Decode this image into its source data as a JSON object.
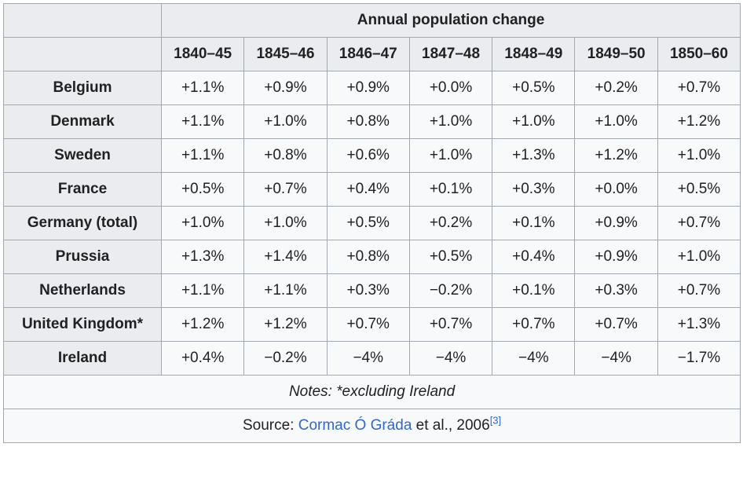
{
  "table": {
    "title": "Annual population change",
    "columns": [
      "1840–45",
      "1845–46",
      "1846–47",
      "1847–48",
      "1848–49",
      "1849–50",
      "1850–60"
    ],
    "rows": [
      {
        "country": "Belgium",
        "values": [
          "+1.1%",
          "+0.9%",
          "+0.9%",
          "+0.0%",
          "+0.5%",
          "+0.2%",
          "+0.7%"
        ]
      },
      {
        "country": "Denmark",
        "values": [
          "+1.1%",
          "+1.0%",
          "+0.8%",
          "+1.0%",
          "+1.0%",
          "+1.0%",
          "+1.2%"
        ]
      },
      {
        "country": "Sweden",
        "values": [
          "+1.1%",
          "+0.8%",
          "+0.6%",
          "+1.0%",
          "+1.3%",
          "+1.2%",
          "+1.0%"
        ]
      },
      {
        "country": "France",
        "values": [
          "+0.5%",
          "+0.7%",
          "+0.4%",
          "+0.1%",
          "+0.3%",
          "+0.0%",
          "+0.5%"
        ]
      },
      {
        "country": "Germany (total)",
        "values": [
          "+1.0%",
          "+1.0%",
          "+0.5%",
          "+0.2%",
          "+0.1%",
          "+0.9%",
          "+0.7%"
        ]
      },
      {
        "country": "Prussia",
        "values": [
          "+1.3%",
          "+1.4%",
          "+0.8%",
          "+0.5%",
          "+0.4%",
          "+0.9%",
          "+1.0%"
        ]
      },
      {
        "country": "Netherlands",
        "values": [
          "+1.1%",
          "+1.1%",
          "+0.3%",
          "−0.2%",
          "+0.1%",
          "+0.3%",
          "+0.7%"
        ]
      },
      {
        "country": "United Kingdom*",
        "values": [
          "+1.2%",
          "+1.2%",
          "+0.7%",
          "+0.7%",
          "+0.7%",
          "+0.7%",
          "+1.3%"
        ]
      },
      {
        "country": "Ireland",
        "values": [
          "+0.4%",
          "−0.2%",
          "−4%",
          "−4%",
          "−4%",
          "−4%",
          "−1.7%"
        ]
      }
    ],
    "notes": "Notes: *excluding Ireland",
    "source": {
      "prefix": "Source: ",
      "link_text": "Cormac Ó Gráda",
      "suffix": " et al., 2006",
      "reference": "[3]"
    }
  },
  "chart_data": {
    "type": "table",
    "title": "Annual population change",
    "categories": [
      "1840–45",
      "1845–46",
      "1846–47",
      "1847–48",
      "1848–49",
      "1849–50",
      "1850–60"
    ],
    "series": [
      {
        "name": "Belgium",
        "values": [
          1.1,
          0.9,
          0.9,
          0.0,
          0.5,
          0.2,
          0.7
        ]
      },
      {
        "name": "Denmark",
        "values": [
          1.1,
          1.0,
          0.8,
          1.0,
          1.0,
          1.0,
          1.2
        ]
      },
      {
        "name": "Sweden",
        "values": [
          1.1,
          0.8,
          0.6,
          1.0,
          1.3,
          1.2,
          1.0
        ]
      },
      {
        "name": "France",
        "values": [
          0.5,
          0.7,
          0.4,
          0.1,
          0.3,
          0.0,
          0.5
        ]
      },
      {
        "name": "Germany (total)",
        "values": [
          1.0,
          1.0,
          0.5,
          0.2,
          0.1,
          0.9,
          0.7
        ]
      },
      {
        "name": "Prussia",
        "values": [
          1.3,
          1.4,
          0.8,
          0.5,
          0.4,
          0.9,
          1.0
        ]
      },
      {
        "name": "Netherlands",
        "values": [
          1.1,
          1.1,
          0.3,
          -0.2,
          0.1,
          0.3,
          0.7
        ]
      },
      {
        "name": "United Kingdom*",
        "values": [
          1.2,
          1.2,
          0.7,
          0.7,
          0.7,
          0.7,
          1.3
        ]
      },
      {
        "name": "Ireland",
        "values": [
          0.4,
          -0.2,
          -4,
          -4,
          -4,
          -4,
          -1.7
        ]
      }
    ],
    "unit": "percent"
  },
  "colors": {
    "border": "#a2a9b1",
    "header_background": "#eaecf0",
    "cell_background": "#f8f9fa",
    "text": "#202122",
    "link": "#3366cc"
  }
}
